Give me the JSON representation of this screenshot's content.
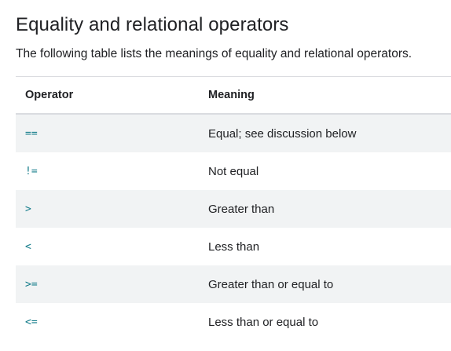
{
  "heading": "Equality and relational operators",
  "intro": "The following table lists the meanings of equality and relational operators.",
  "table": {
    "headers": {
      "operator": "Operator",
      "meaning": "Meaning"
    },
    "rows": [
      {
        "operator": "==",
        "meaning": "Equal; see discussion below"
      },
      {
        "operator": "!=",
        "meaning": "Not equal"
      },
      {
        "operator": ">",
        "meaning": "Greater than"
      },
      {
        "operator": "<",
        "meaning": "Less than"
      },
      {
        "operator": ">=",
        "meaning": "Greater than or equal to"
      },
      {
        "operator": "<=",
        "meaning": "Less than or equal to"
      }
    ]
  },
  "colors": {
    "code": "#137c8a",
    "row_shade": "#f1f3f4",
    "text": "#202124"
  }
}
